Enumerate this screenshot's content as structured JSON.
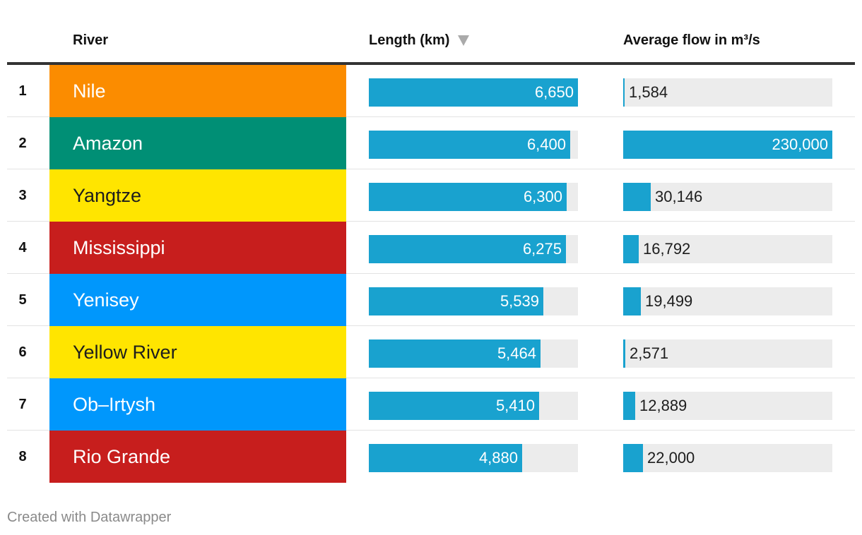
{
  "header": {
    "col_rank": "",
    "col_river": "River",
    "col_length": "Length (km)",
    "col_flow": "Average flow in m³/s",
    "sort_icon": "sort-descending-triangle-icon"
  },
  "chart_data": {
    "type": "table",
    "columns": [
      "",
      "River",
      "Length (km)",
      "Average flow in m³/s"
    ],
    "length_max": 6650,
    "flow_max": 230000,
    "rows": [
      {
        "rank": "1",
        "river": "Nile",
        "color": "#fb8c00",
        "text_color": "#ffffff",
        "length": 6650,
        "length_label": "6,650",
        "flow": 1584,
        "flow_label": "1,584"
      },
      {
        "rank": "2",
        "river": "Amazon",
        "color": "#008f75",
        "text_color": "#ffffff",
        "length": 6400,
        "length_label": "6,400",
        "flow": 230000,
        "flow_label": "230,000"
      },
      {
        "rank": "3",
        "river": "Yangtze",
        "color": "#ffe500",
        "text_color": "#1d1d1d",
        "length": 6300,
        "length_label": "6,300",
        "flow": 30146,
        "flow_label": "30,146"
      },
      {
        "rank": "4",
        "river": "Mississippi",
        "color": "#c71e1d",
        "text_color": "#ffffff",
        "length": 6275,
        "length_label": "6,275",
        "flow": 16792,
        "flow_label": "16,792"
      },
      {
        "rank": "5",
        "river": "Yenisey",
        "color": "#0097fc",
        "text_color": "#ffffff",
        "length": 5539,
        "length_label": "5,539",
        "flow": 19499,
        "flow_label": "19,499"
      },
      {
        "rank": "6",
        "river": "Yellow River",
        "color": "#ffe500",
        "text_color": "#1d1d1d",
        "length": 5464,
        "length_label": "5,464",
        "flow": 2571,
        "flow_label": "2,571"
      },
      {
        "rank": "7",
        "river": "Ob–Irtysh",
        "color": "#0097fc",
        "text_color": "#ffffff",
        "length": 5410,
        "length_label": "5,410",
        "flow": 12889,
        "flow_label": "12,889"
      },
      {
        "rank": "8",
        "river": "Rio Grande",
        "color": "#c71e1d",
        "text_color": "#ffffff",
        "length": 4880,
        "length_label": "4,880",
        "flow": 22000,
        "flow_label": "22,000"
      }
    ]
  },
  "colors": {
    "bar": "#19a2cf",
    "track": "#ececec"
  },
  "footer": {
    "credit": "Created with Datawrapper"
  }
}
